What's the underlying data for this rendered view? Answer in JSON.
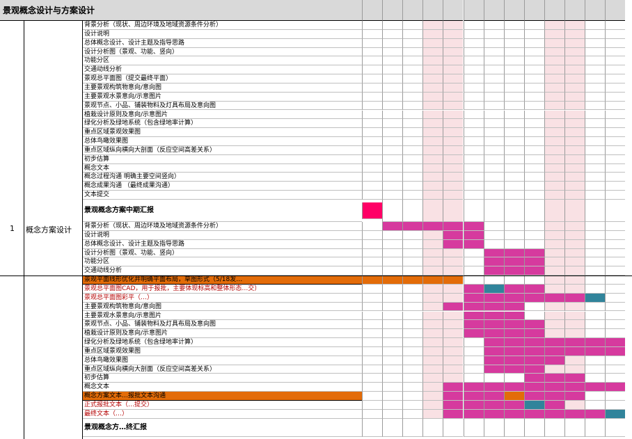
{
  "sheet_title": "景观概念设计与方案设计",
  "phase": {
    "index": "1",
    "name": "概念方案设计"
  },
  "colors": {
    "pink_light": "#f9e1e4",
    "magenta": "#d63a9e",
    "teal": "#31849b",
    "orange": "#e36c09",
    "red_marker": "#ff0066",
    "header_grey": "#d9d9d9"
  },
  "tasks": [
    {
      "label": "背景分析（现状、周边环境及地域资源条件分析）",
      "style": "normal",
      "cells": []
    },
    {
      "label": "设计说明",
      "style": "normal",
      "cells": []
    },
    {
      "label": "总体概念设计、设计主题及指导思路",
      "style": "normal",
      "cells": []
    },
    {
      "label": "设计分析图（景观、功能、竖向）",
      "style": "normal",
      "cells": []
    },
    {
      "label": "功能分区",
      "style": "normal",
      "cells": []
    },
    {
      "label": "交通动线分析",
      "style": "normal",
      "cells": []
    },
    {
      "label": "景观总平面图（提交最终平面）",
      "style": "normal",
      "cells": []
    },
    {
      "label": "主要景观构筑物意向/意向图",
      "style": "normal",
      "cells": []
    },
    {
      "label": "主要景观水景意向/示意图片",
      "style": "normal",
      "cells": []
    },
    {
      "label": "景观节点、小品、铺装物料及灯具布局及意向图",
      "style": "normal",
      "cells": []
    },
    {
      "label": "植栽设计原则及意向/示意图片",
      "style": "normal",
      "cells": []
    },
    {
      "label": "绿化分析及绿地系统（包含绿地率计算）",
      "style": "normal",
      "cells": []
    },
    {
      "label": "重点区域景观效果图",
      "style": "normal",
      "cells": []
    },
    {
      "label": "总体鸟瞰效果图",
      "style": "normal",
      "cells": []
    },
    {
      "label": "重点区域纵向横向大剖面（反应空间高差关系）",
      "style": "normal",
      "cells": []
    },
    {
      "label": "初步估算",
      "style": "normal",
      "cells": []
    },
    {
      "label": "概念文本",
      "style": "normal",
      "cells": []
    },
    {
      "label": "概念过程沟通 明确主要空间竖向）",
      "style": "normal",
      "cells": []
    },
    {
      "label": "概念成果沟通 （最终成果沟通）",
      "style": "normal",
      "cells": []
    },
    {
      "label": "文本提交",
      "style": "normal",
      "cells": []
    },
    {
      "label": "景观概念方案中期汇报",
      "style": "bold",
      "cells": [
        {
          "c": 0,
          "k": "marker"
        }
      ]
    },
    {
      "label": "背景分析（现状、周边环境及地域资源条件分析）",
      "style": "normal",
      "cells": [
        {
          "c": 1,
          "k": "m"
        },
        {
          "c": 2,
          "k": "m"
        },
        {
          "c": 3,
          "k": "m"
        },
        {
          "c": 4,
          "k": "m"
        },
        {
          "c": 5,
          "k": "m"
        }
      ]
    },
    {
      "label": "设计说明",
      "style": "normal",
      "cells": [
        {
          "c": 4,
          "k": "m"
        },
        {
          "c": 5,
          "k": "m"
        }
      ]
    },
    {
      "label": "总体概念设计、设计主题及指导思路",
      "style": "normal",
      "cells": [
        {
          "c": 4,
          "k": "m"
        },
        {
          "c": 5,
          "k": "m"
        }
      ]
    },
    {
      "label": "设计分析图（景观、功能、竖向）",
      "style": "normal",
      "cells": [
        {
          "c": 6,
          "k": "m"
        },
        {
          "c": 7,
          "k": "m"
        },
        {
          "c": 8,
          "k": "m"
        }
      ]
    },
    {
      "label": "功能分区",
      "style": "normal",
      "cells": [
        {
          "c": 6,
          "k": "m"
        },
        {
          "c": 7,
          "k": "m"
        },
        {
          "c": 8,
          "k": "m"
        }
      ]
    },
    {
      "label": "交通动线分析",
      "style": "normal",
      "cells": [
        {
          "c": 6,
          "k": "m"
        },
        {
          "c": 7,
          "k": "m"
        },
        {
          "c": 8,
          "k": "m"
        }
      ]
    },
    {
      "label": "景观平面线形优化并明确平面布局，草图形式（5/18发…",
      "style": "hl",
      "cells": [
        {
          "c": 0,
          "k": "o"
        },
        {
          "c": 1,
          "k": "o"
        },
        {
          "c": 2,
          "k": "o"
        },
        {
          "c": 3,
          "k": "o"
        },
        {
          "c": 4,
          "k": "o"
        }
      ]
    },
    {
      "label": "景观总平面图CAD，用于报批，主要体现标高和整体形态…交）",
      "style": "red",
      "cells": [
        {
          "c": 5,
          "k": "m"
        },
        {
          "c": 6,
          "k": "t"
        },
        {
          "c": 7,
          "k": "m"
        },
        {
          "c": 8,
          "k": "m"
        }
      ]
    },
    {
      "label": "景观总平面图彩平（…）",
      "style": "red",
      "cells": [
        {
          "c": 5,
          "k": "m"
        },
        {
          "c": 6,
          "k": "m"
        },
        {
          "c": 7,
          "k": "m"
        },
        {
          "c": 8,
          "k": "m"
        },
        {
          "c": 9,
          "k": "m"
        },
        {
          "c": 10,
          "k": "m"
        },
        {
          "c": 11,
          "k": "t"
        }
      ]
    },
    {
      "label": "主要景观构筑物意向/意向图",
      "style": "normal",
      "cells": [
        {
          "c": 4,
          "k": "m"
        },
        {
          "c": 5,
          "k": "m"
        },
        {
          "c": 6,
          "k": "m"
        },
        {
          "c": 7,
          "k": "m"
        }
      ]
    },
    {
      "label": "主要景观水景意向/示意图片",
      "style": "normal",
      "cells": [
        {
          "c": 5,
          "k": "m"
        },
        {
          "c": 6,
          "k": "m"
        },
        {
          "c": 7,
          "k": "m"
        }
      ]
    },
    {
      "label": "景观节点、小品、铺装物料及灯具布局及意向图",
      "style": "normal",
      "cells": [
        {
          "c": 5,
          "k": "m"
        },
        {
          "c": 6,
          "k": "m"
        },
        {
          "c": 7,
          "k": "m"
        },
        {
          "c": 8,
          "k": "m"
        }
      ]
    },
    {
      "label": "植栽设计原则及意向/示意图片",
      "style": "normal",
      "cells": [
        {
          "c": 5,
          "k": "m"
        },
        {
          "c": 6,
          "k": "m"
        },
        {
          "c": 7,
          "k": "m"
        },
        {
          "c": 8,
          "k": "m"
        }
      ]
    },
    {
      "label": "绿化分析及绿地系统（包含绿地率计算）",
      "style": "normal",
      "cells": [
        {
          "c": 6,
          "k": "m"
        },
        {
          "c": 7,
          "k": "m"
        },
        {
          "c": 8,
          "k": "m"
        },
        {
          "c": 9,
          "k": "m"
        },
        {
          "c": 10,
          "k": "m"
        },
        {
          "c": 11,
          "k": "m"
        },
        {
          "c": 12,
          "k": "m"
        }
      ]
    },
    {
      "label": "重点区域景观效果图",
      "style": "normal",
      "cells": [
        {
          "c": 6,
          "k": "m"
        },
        {
          "c": 7,
          "k": "m"
        },
        {
          "c": 8,
          "k": "m"
        },
        {
          "c": 9,
          "k": "m"
        },
        {
          "c": 10,
          "k": "m"
        },
        {
          "c": 11,
          "k": "m"
        },
        {
          "c": 12,
          "k": "m"
        }
      ]
    },
    {
      "label": "总体鸟瞰效果图",
      "style": "normal",
      "cells": [
        {
          "c": 6,
          "k": "m"
        },
        {
          "c": 7,
          "k": "m"
        },
        {
          "c": 8,
          "k": "m"
        },
        {
          "c": 9,
          "k": "m"
        }
      ]
    },
    {
      "label": "重点区域纵向横向大剖面（反应空间高差关系）",
      "style": "normal",
      "cells": [
        {
          "c": 6,
          "k": "m"
        },
        {
          "c": 7,
          "k": "m"
        },
        {
          "c": 8,
          "k": "m"
        }
      ]
    },
    {
      "label": "初步估算",
      "style": "normal",
      "cells": [
        {
          "c": 8,
          "k": "m"
        },
        {
          "c": 9,
          "k": "m"
        },
        {
          "c": 10,
          "k": "m"
        }
      ]
    },
    {
      "label": "概念文本",
      "style": "normal",
      "cells": [
        {
          "c": 4,
          "k": "m"
        },
        {
          "c": 5,
          "k": "m"
        },
        {
          "c": 6,
          "k": "m"
        },
        {
          "c": 7,
          "k": "m"
        },
        {
          "c": 8,
          "k": "m"
        },
        {
          "c": 9,
          "k": "m"
        },
        {
          "c": 10,
          "k": "m"
        },
        {
          "c": 11,
          "k": "m"
        },
        {
          "c": 12,
          "k": "m"
        }
      ]
    },
    {
      "label": "概念方案文本…报批文本沟通",
      "style": "hl",
      "cells": [
        {
          "c": 4,
          "k": "m"
        },
        {
          "c": 5,
          "k": "m"
        },
        {
          "c": 6,
          "k": "m"
        },
        {
          "c": 7,
          "k": "o"
        },
        {
          "c": 8,
          "k": "m"
        },
        {
          "c": 9,
          "k": "m"
        },
        {
          "c": 10,
          "k": "m"
        }
      ]
    },
    {
      "label": "正式报批文本（…提交）",
      "style": "red",
      "cells": [
        {
          "c": 4,
          "k": "m"
        },
        {
          "c": 5,
          "k": "m"
        },
        {
          "c": 6,
          "k": "m"
        },
        {
          "c": 7,
          "k": "m"
        },
        {
          "c": 8,
          "k": "t"
        },
        {
          "c": 9,
          "k": "m"
        }
      ]
    },
    {
      "label": "最终文本（…）",
      "style": "red",
      "cells": [
        {
          "c": 4,
          "k": "m"
        },
        {
          "c": 5,
          "k": "m"
        },
        {
          "c": 6,
          "k": "m"
        },
        {
          "c": 7,
          "k": "m"
        },
        {
          "c": 8,
          "k": "m"
        },
        {
          "c": 9,
          "k": "m"
        },
        {
          "c": 10,
          "k": "m"
        },
        {
          "c": 11,
          "k": "m"
        },
        {
          "c": 12,
          "k": "t"
        }
      ]
    },
    {
      "label": "景观概念方…终汇报",
      "style": "bold",
      "cells": []
    }
  ]
}
